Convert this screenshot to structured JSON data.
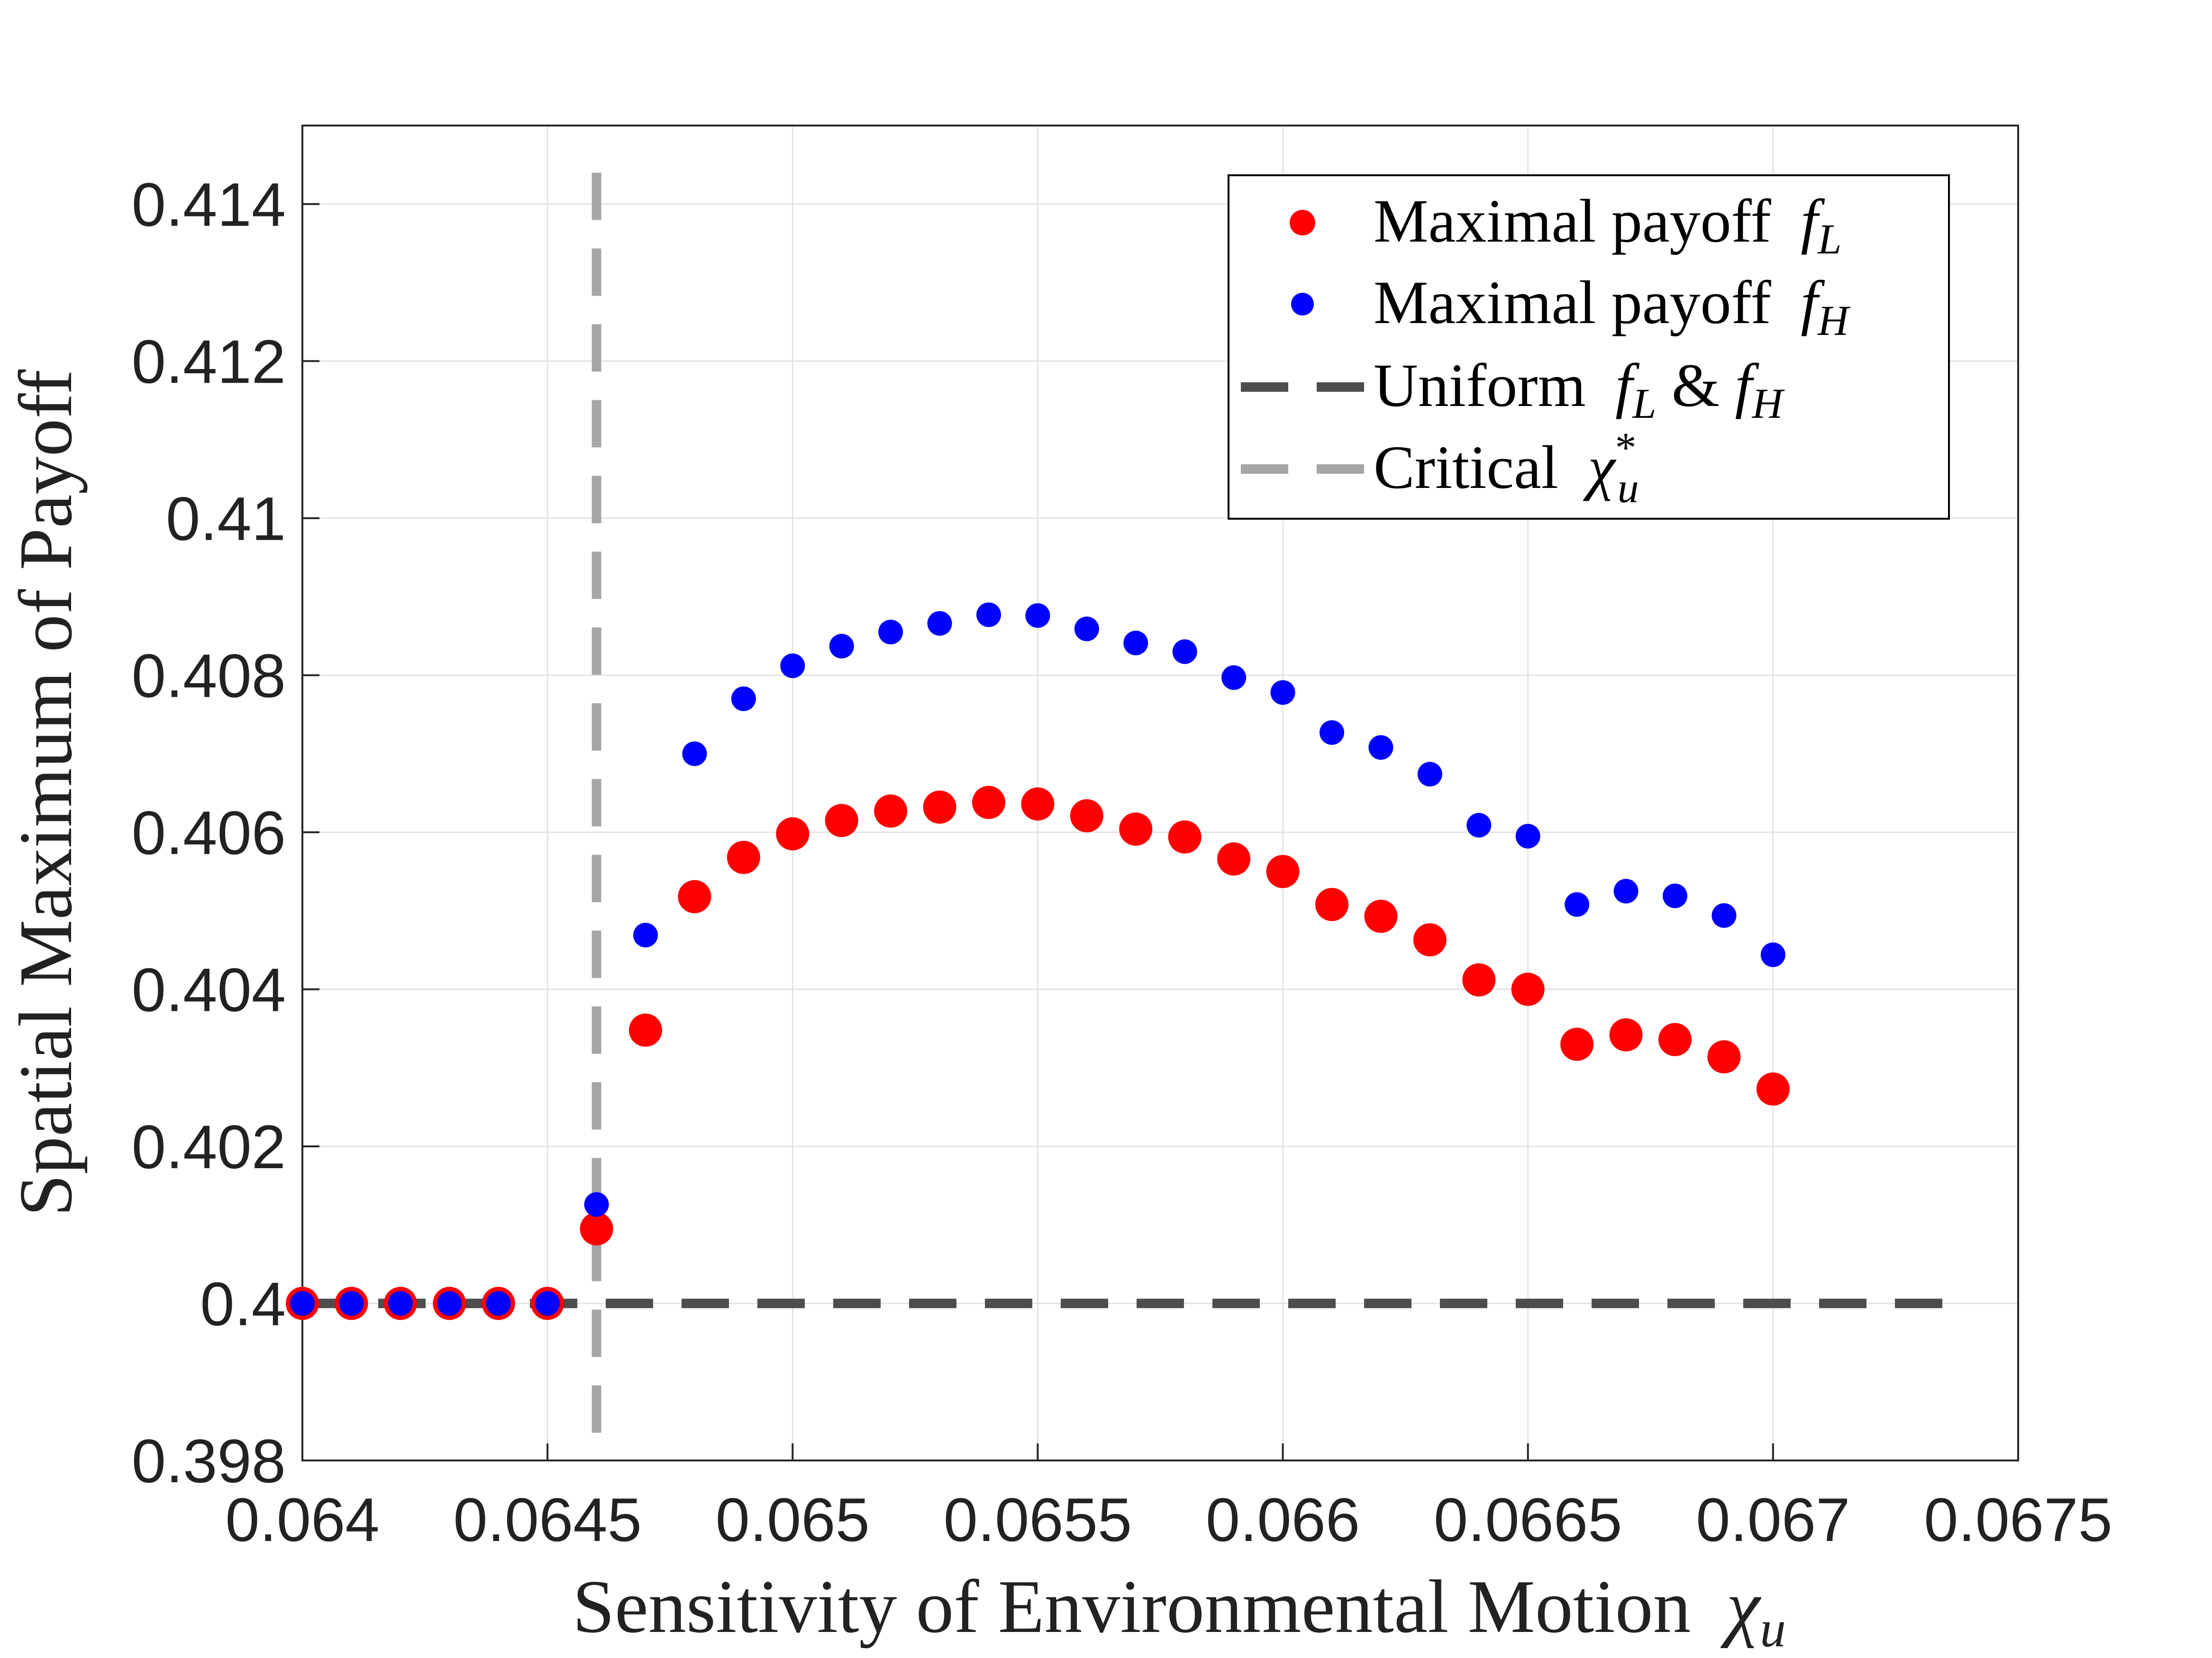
{
  "chart_data": {
    "type": "scatter",
    "xlabel": "Sensitivity of Environmental Motion",
    "xlabel_symbol": "χ",
    "xlabel_sub": "u",
    "ylabel": "Spatial Maximum of Payoff",
    "xlim": [
      0.064,
      0.0675
    ],
    "ylim": [
      0.398,
      0.415
    ],
    "xticks": [
      0.064,
      0.0645,
      0.065,
      0.0655,
      0.066,
      0.0665,
      0.067,
      0.0675
    ],
    "xtick_labels": [
      "0.064",
      "0.0645",
      "0.065",
      "0.0655",
      "0.066",
      "0.0665",
      "0.067",
      "0.0675"
    ],
    "yticks": [
      0.398,
      0.4,
      0.402,
      0.404,
      0.406,
      0.408,
      0.41,
      0.412,
      0.414
    ],
    "ytick_labels": [
      "0.398",
      "0.4",
      "0.402",
      "0.404",
      "0.406",
      "0.408",
      "0.41",
      "0.412",
      "0.414"
    ],
    "grid": true,
    "legend_position": "top-right",
    "x": [
      0.064,
      0.0641,
      0.0642,
      0.0643,
      0.0644,
      0.0645,
      0.0646,
      0.0647,
      0.0648,
      0.0649,
      0.065,
      0.0651,
      0.0652,
      0.0653,
      0.0654,
      0.0655,
      0.0656,
      0.0657,
      0.0658,
      0.0659,
      0.066,
      0.0661,
      0.0662,
      0.0663,
      0.0664,
      0.0665,
      0.0666,
      0.0667,
      0.0668,
      0.0669,
      0.067
    ],
    "series": [
      {
        "key": "fL",
        "name": "Maximal payoff",
        "symbol": "f",
        "sub": "L",
        "color": "#ff0000",
        "marker": "large-dot",
        "values": [
          0.4,
          0.4,
          0.4,
          0.4,
          0.4,
          0.4,
          0.40095,
          0.40348,
          0.40518,
          0.40568,
          0.40598,
          0.40615,
          0.40627,
          0.40632,
          0.40638,
          0.40636,
          0.40621,
          0.40604,
          0.40594,
          0.40566,
          0.4055,
          0.40508,
          0.40493,
          0.40463,
          0.40412,
          0.404,
          0.4033,
          0.40342,
          0.40336,
          0.40314,
          0.40273
        ]
      },
      {
        "key": "fH",
        "name": "Maximal payoff",
        "symbol": "f",
        "sub": "H",
        "color": "#0000ff",
        "marker": "small-dot",
        "values": [
          0.4,
          0.4,
          0.4,
          0.4,
          0.4,
          0.4,
          0.40126,
          0.40469,
          0.407,
          0.4077,
          0.40812,
          0.40837,
          0.40855,
          0.40866,
          0.40877,
          0.40876,
          0.40859,
          0.40841,
          0.4083,
          0.40797,
          0.40778,
          0.40727,
          0.40708,
          0.40674,
          0.40609,
          0.40595,
          0.40508,
          0.40525,
          0.40519,
          0.40494,
          0.40444
        ]
      }
    ],
    "reference_lines": [
      {
        "key": "uniform",
        "name": "Uniform",
        "legend_parts": [
          "f",
          "L",
          " & ",
          "f",
          "H"
        ],
        "orientation": "horizontal",
        "value": 0.4,
        "from": 0.064,
        "to": 0.0674,
        "color": "#4d4d4d",
        "style": "dashed"
      },
      {
        "key": "critical",
        "name": "Critical",
        "symbol": "χ",
        "sup": "*",
        "sub": "u",
        "orientation": "vertical",
        "value": 0.0646,
        "from": 0.398,
        "to": 0.4144,
        "color": "#a6a6a6",
        "style": "dashed"
      }
    ]
  }
}
